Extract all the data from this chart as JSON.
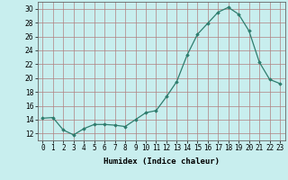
{
  "x": [
    0,
    1,
    2,
    3,
    4,
    5,
    6,
    7,
    8,
    9,
    10,
    11,
    12,
    13,
    14,
    15,
    16,
    17,
    18,
    19,
    20,
    21,
    22,
    23
  ],
  "y": [
    14.2,
    14.3,
    12.5,
    11.8,
    12.7,
    13.3,
    13.3,
    13.2,
    13.0,
    14.0,
    15.0,
    15.3,
    17.3,
    19.5,
    23.3,
    26.3,
    27.9,
    29.5,
    30.2,
    29.2,
    26.8,
    22.3,
    19.8,
    19.2
  ],
  "line_color": "#2e7d6e",
  "marker": "D",
  "marker_size": 1.8,
  "bg_color": "#c8eeee",
  "grid_color": "#b08080",
  "xlabel": "Humidex (Indice chaleur)",
  "xlim": [
    -0.5,
    23.5
  ],
  "ylim": [
    11,
    31
  ],
  "yticks": [
    12,
    14,
    16,
    18,
    20,
    22,
    24,
    26,
    28,
    30
  ],
  "xtick_labels": [
    "0",
    "1",
    "2",
    "3",
    "4",
    "5",
    "6",
    "7",
    "8",
    "9",
    "10",
    "11",
    "12",
    "13",
    "14",
    "15",
    "16",
    "17",
    "18",
    "19",
    "20",
    "21",
    "22",
    "23"
  ],
  "label_fontsize": 6.5,
  "tick_fontsize": 5.5
}
